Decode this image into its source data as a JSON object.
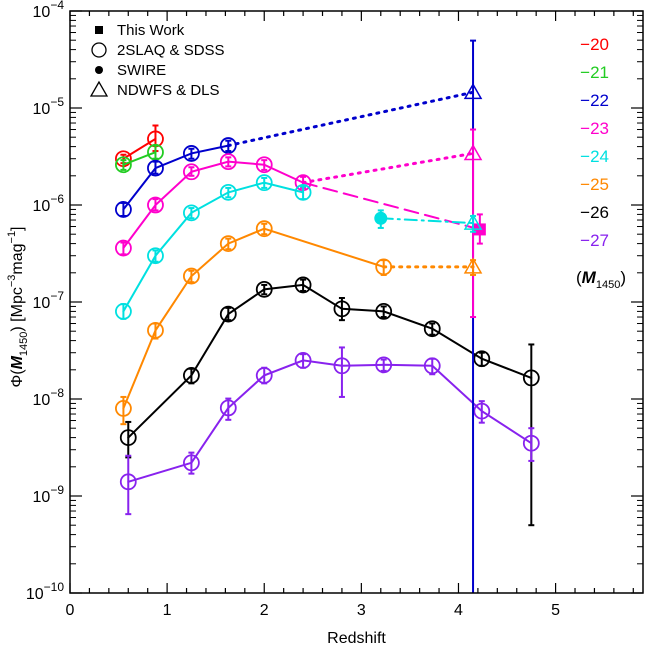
{
  "chart_data": {
    "type": "line",
    "xlabel": "Redshift",
    "ylabel_parts": {
      "phi": "Φ(",
      "M": "M",
      "sub": "1450",
      "close": ")",
      "units_a": "[Mpc",
      "units_exp1": "−3",
      "units_b": "mag",
      "units_exp2": "−1",
      "units_c": "]"
    },
    "xlim": [
      0,
      5.9
    ],
    "ylim": [
      1e-10,
      0.0001
    ],
    "yscale": "log",
    "x_ticks": [
      0,
      1,
      2,
      3,
      4,
      5
    ],
    "x_tick_labels": [
      "0",
      "1",
      "2",
      "3",
      "4",
      "5"
    ],
    "y_ticks": [
      {
        "base": "10",
        "exp": "−10",
        "value": 1e-10
      },
      {
        "base": "10",
        "exp": "−9",
        "value": 1e-09
      },
      {
        "base": "10",
        "exp": "−8",
        "value": 1e-08
      },
      {
        "base": "10",
        "exp": "−7",
        "value": 1e-07
      },
      {
        "base": "10",
        "exp": "−6",
        "value": 1e-06
      },
      {
        "base": "10",
        "exp": "−5",
        "value": 1e-05
      },
      {
        "base": "10",
        "exp": "−4",
        "value": 0.0001
      }
    ],
    "legend": [
      {
        "label": "This Work",
        "marker": "square"
      },
      {
        "label": "2SLAQ & SDSS",
        "marker": "open-circle"
      },
      {
        "label": "SWIRE",
        "marker": "filled-circle"
      },
      {
        "label": "NDWFS & DLS",
        "marker": "open-triangle"
      }
    ],
    "magnitude_key_title": {
      "open": "(",
      "M": "M",
      "sub": "1450",
      "close": ")"
    },
    "series": [
      {
        "name": "−20",
        "color": "#ff0000",
        "points": [
          [
            0.55,
            3e-06,
            3e-07,
            3e-07
          ],
          [
            0.88,
            4.8e-06,
            1.8e-06,
            1.2e-06
          ]
        ],
        "extension": null
      },
      {
        "name": "−21",
        "color": "#22cc22",
        "points": [
          [
            0.55,
            2.6e-06,
            3e-07,
            3e-07
          ],
          [
            0.88,
            3.5e-06,
            6e-07,
            5e-07
          ]
        ],
        "extension": null
      },
      {
        "name": "−22",
        "color": "#0000cc",
        "points": [
          [
            0.55,
            9e-07,
            1.5e-07,
            1.3e-07
          ],
          [
            0.88,
            2.4e-06,
            4e-07,
            3e-07
          ],
          [
            1.25,
            3.4e-06,
            4e-07,
            4e-07
          ],
          [
            1.63,
            4.1e-06,
            5e-07,
            5e-07
          ]
        ],
        "extension": {
          "style": "dotted",
          "points": [
            [
              1.63,
              4.1e-06
            ],
            [
              4.15,
              1.45e-05
            ]
          ]
        }
      },
      {
        "name": "−23",
        "color": "#ff00cc",
        "points": [
          [
            0.55,
            3.6e-07,
            5e-08,
            5e-08
          ],
          [
            0.88,
            1e-06,
            1.5e-07,
            1.2e-07
          ],
          [
            1.25,
            2.2e-06,
            2.5e-07,
            2e-07
          ],
          [
            1.63,
            2.8e-06,
            3e-07,
            3e-07
          ],
          [
            2.0,
            2.6e-06,
            3e-07,
            3e-07
          ],
          [
            2.4,
            1.7e-06,
            2.5e-07,
            2e-07
          ]
        ],
        "extension": {
          "style": "dotted",
          "points": [
            [
              2.4,
              1.7e-06
            ],
            [
              4.15,
              3.4e-06
            ]
          ]
        }
      },
      {
        "name": "−24",
        "color": "#00e0e0",
        "points": [
          [
            0.55,
            8e-08,
            1.5e-08,
            1.3e-08
          ],
          [
            0.88,
            3e-07,
            4e-08,
            4e-08
          ],
          [
            1.25,
            8.3e-07,
            1e-07,
            1e-07
          ],
          [
            1.63,
            1.35e-06,
            1.5e-07,
            1.5e-07
          ],
          [
            2.0,
            1.7e-06,
            2e-07,
            2e-07
          ],
          [
            2.4,
            1.35e-06,
            2e-07,
            2e-07
          ]
        ],
        "extension": null
      },
      {
        "name": "−25",
        "color": "#ff8800",
        "points": [
          [
            0.55,
            8e-09,
            2.5e-09,
            2.5e-09
          ],
          [
            0.88,
            5.1e-08,
            9e-09,
            9e-09
          ],
          [
            1.25,
            1.85e-07,
            2.5e-08,
            2.5e-08
          ],
          [
            1.63,
            4e-07,
            5e-08,
            5e-08
          ],
          [
            2.0,
            5.7e-07,
            7e-08,
            7e-08
          ],
          [
            3.23,
            2.3e-07,
            4e-08,
            4e-08
          ]
        ],
        "extension": {
          "style": "dotted",
          "points": [
            [
              3.23,
              2.3e-07
            ],
            [
              4.15,
              2.3e-07
            ]
          ]
        }
      },
      {
        "name": "−26",
        "color": "#000000",
        "points": [
          [
            0.6,
            4e-09,
            1.8e-09,
            1.5e-09
          ],
          [
            1.25,
            1.75e-08,
            3e-09,
            3e-09
          ],
          [
            1.63,
            7.5e-08,
            1.2e-08,
            1e-08
          ],
          [
            2.0,
            1.35e-07,
            1.5e-08,
            1.5e-08
          ],
          [
            2.4,
            1.5e-07,
            2e-08,
            2e-08
          ],
          [
            2.8,
            8.5e-08,
            2.5e-08,
            2e-08
          ],
          [
            3.23,
            8e-08,
            1e-08,
            1e-08
          ],
          [
            3.73,
            5.3e-08,
            7e-09,
            7e-09
          ],
          [
            4.24,
            2.6e-08,
            4e-09,
            4e-09
          ],
          [
            4.75,
            1.65e-08,
            2e-08,
            1.6e-08
          ]
        ],
        "extension": null
      },
      {
        "name": "−27",
        "color": "#8822ee",
        "points": [
          [
            0.6,
            1.4e-09,
            1.2e-09,
            7.5e-10
          ],
          [
            1.25,
            2.2e-09,
            6e-10,
            5e-10
          ],
          [
            1.63,
            8.1e-09,
            2e-09,
            2e-09
          ],
          [
            2.0,
            1.75e-08,
            3.5e-09,
            3e-09
          ],
          [
            2.4,
            2.5e-08,
            4e-09,
            4e-09
          ],
          [
            2.8,
            2.2e-08,
            1.2e-08,
            1.15e-08
          ],
          [
            3.23,
            2.25e-08,
            3e-09,
            3e-09
          ],
          [
            3.73,
            2.2e-08,
            4e-09,
            4e-09
          ],
          [
            4.24,
            7.5e-09,
            2e-09,
            1.8e-09
          ],
          [
            4.75,
            3.5e-09,
            1.5e-09,
            1.2e-09
          ]
        ],
        "extension": null
      }
    ],
    "special_points": [
      {
        "source": "SWIRE",
        "series": "−24",
        "marker": "filled-circle",
        "color": "#00e0e0",
        "x": 3.2,
        "y": 7.3e-07,
        "err_up": 1.5e-07,
        "err_down": 1.5e-07
      },
      {
        "source": "This Work",
        "series": "−23",
        "marker": "square",
        "color": "#ff00cc",
        "x": 4.22,
        "y": 5.6e-07,
        "err_up": 2.4e-07,
        "err_down": 1.6e-07
      },
      {
        "source": "NDWFS & DLS",
        "series": "−22",
        "marker": "open-triangle",
        "color": "#0000cc",
        "x": 4.15,
        "y": 1.45e-05,
        "err_up": 3.5e-05,
        "err_down": 1.45e-05
      },
      {
        "source": "NDWFS & DLS",
        "series": "−23",
        "marker": "open-triangle",
        "color": "#ff00cc",
        "x": 4.15,
        "y": 3.4e-06,
        "err_up": 2.6e-06,
        "err_down": 3.33e-06
      },
      {
        "source": "NDWFS & DLS",
        "series": "−24",
        "marker": "open-triangle",
        "color": "#00e0e0",
        "x": 4.15,
        "y": 6.5e-07,
        "err_up": 1.2e-07,
        "err_down": 1.2e-07
      },
      {
        "source": "NDWFS & DLS",
        "series": "−25",
        "marker": "open-triangle",
        "color": "#ff8800",
        "x": 4.15,
        "y": 2.3e-07,
        "err_up": 4e-08,
        "err_down": 4e-08
      }
    ],
    "connectors": [
      {
        "series": "−23",
        "color": "#ff00cc",
        "style": "dashed",
        "points": [
          [
            2.4,
            1.7e-06
          ],
          [
            4.22,
            5.6e-07
          ]
        ]
      },
      {
        "series": "−24",
        "color": "#00e0e0",
        "style": "dashdot",
        "points": [
          [
            3.2,
            7.3e-07
          ],
          [
            4.15,
            6.5e-07
          ]
        ]
      }
    ]
  }
}
